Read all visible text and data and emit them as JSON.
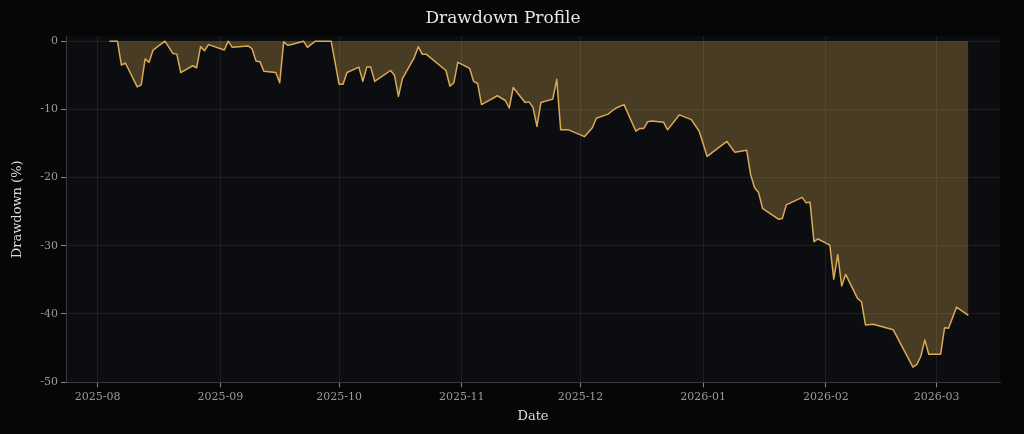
{
  "chart_data": {
    "type": "area",
    "title": "Drawdown Profile",
    "xlabel": "Date",
    "ylabel": "Drawdown (%)",
    "xlim": [
      "2025-07-24",
      "2026-03-17"
    ],
    "xticks": [
      "2025-08",
      "2025-09",
      "2025-10",
      "2025-11",
      "2025-12",
      "2026-01",
      "2026-02",
      "2026-03"
    ],
    "ylim": [
      -50,
      0.7
    ],
    "yticks": [
      -50,
      -40,
      -30,
      -20,
      -10,
      0
    ],
    "grid": true,
    "legend": false,
    "marker": "none",
    "x": [
      "2025-08-04",
      "2025-08-06",
      "2025-08-07",
      "2025-08-08",
      "2025-08-11",
      "2025-08-12",
      "2025-08-13",
      "2025-08-14",
      "2025-08-15",
      "2025-08-18",
      "2025-08-20",
      "2025-08-21",
      "2025-08-22",
      "2025-08-25",
      "2025-08-26",
      "2025-08-27",
      "2025-08-28",
      "2025-08-29",
      "2025-09-02",
      "2025-09-03",
      "2025-09-04",
      "2025-09-08",
      "2025-09-09",
      "2025-09-10",
      "2025-09-11",
      "2025-09-12",
      "2025-09-15",
      "2025-09-16",
      "2025-09-17",
      "2025-09-18",
      "2025-09-19",
      "2025-09-22",
      "2025-09-23",
      "2025-09-25",
      "2025-09-29",
      "2025-10-01",
      "2025-10-02",
      "2025-10-03",
      "2025-10-06",
      "2025-10-07",
      "2025-10-08",
      "2025-10-09",
      "2025-10-10",
      "2025-10-14",
      "2025-10-15",
      "2025-10-16",
      "2025-10-17",
      "2025-10-20",
      "2025-10-21",
      "2025-10-22",
      "2025-10-23",
      "2025-10-28",
      "2025-10-29",
      "2025-10-30",
      "2025-10-31",
      "2025-11-03",
      "2025-11-04",
      "2025-11-05",
      "2025-11-06",
      "2025-11-10",
      "2025-11-12",
      "2025-11-13",
      "2025-11-14",
      "2025-11-17",
      "2025-11-18",
      "2025-11-19",
      "2025-11-20",
      "2025-11-21",
      "2025-11-24",
      "2025-11-25",
      "2025-11-26",
      "2025-11-28",
      "2025-12-02",
      "2025-12-04",
      "2025-12-05",
      "2025-12-08",
      "2025-12-09",
      "2025-12-10",
      "2025-12-12",
      "2025-12-15",
      "2025-12-16",
      "2025-12-17",
      "2025-12-18",
      "2025-12-19",
      "2025-12-22",
      "2025-12-23",
      "2025-12-26",
      "2025-12-29",
      "2025-12-31",
      "2026-01-02",
      "2026-01-07",
      "2026-01-09",
      "2026-01-12",
      "2026-01-13",
      "2026-01-14",
      "2026-01-15",
      "2026-01-16",
      "2026-01-20",
      "2026-01-21",
      "2026-01-22",
      "2026-01-26",
      "2026-01-27",
      "2026-01-28",
      "2026-01-29",
      "2026-01-30",
      "2026-02-02",
      "2026-02-03",
      "2026-02-04",
      "2026-02-05",
      "2026-02-06",
      "2026-02-09",
      "2026-02-10",
      "2026-02-11",
      "2026-02-13",
      "2026-02-18",
      "2026-02-23",
      "2026-02-24",
      "2026-02-25",
      "2026-02-26",
      "2026-02-27",
      "2026-03-02",
      "2026-03-03",
      "2026-03-04",
      "2026-03-06",
      "2026-03-09"
    ],
    "series": [
      {
        "color": "#d9aa55",
        "values": [
          0,
          0,
          -3.5,
          -3.2,
          -6.7,
          -6.4,
          -2.6,
          -3.1,
          -1.3,
          0,
          -1.8,
          -1.9,
          -4.6,
          -3.6,
          -3.9,
          -0.8,
          -1.4,
          -0.5,
          -1.3,
          0,
          -0.9,
          -0.7,
          -1.1,
          -2.9,
          -3.0,
          -4.4,
          -4.6,
          -6.1,
          -0.1,
          -0.6,
          -0.5,
          0,
          -0.9,
          0,
          0,
          -6.3,
          -6.3,
          -4.6,
          -3.8,
          -5.9,
          -3.8,
          -3.8,
          -5.9,
          -4.3,
          -5.0,
          -8.1,
          -5.5,
          -2.4,
          -0.8,
          -1.9,
          -1.9,
          -4.3,
          -6.6,
          -6.1,
          -3.1,
          -4.0,
          -5.9,
          -6.2,
          -9.3,
          -8.0,
          -8.7,
          -9.8,
          -6.8,
          -9.0,
          -8.9,
          -9.7,
          -12.5,
          -9.0,
          -8.5,
          -5.6,
          -13.0,
          -13.0,
          -14.0,
          -12.7,
          -11.3,
          -10.7,
          -10.2,
          -9.8,
          -9.3,
          -13.2,
          -12.8,
          -12.8,
          -11.8,
          -11.7,
          -11.9,
          -13.0,
          -10.8,
          -11.5,
          -13.2,
          -16.9,
          -14.7,
          -16.3,
          -16.0,
          -19.6,
          -21.5,
          -22.2,
          -24.5,
          -26.1,
          -26.0,
          -24.0,
          -22.9,
          -23.7,
          -23.6,
          -29.4,
          -29.0,
          -29.9,
          -34.9,
          -31.3,
          -35.9,
          -34.2,
          -37.7,
          -38.2,
          -41.6,
          -41.5,
          -42.3,
          -47.8,
          -47.4,
          -46.2,
          -43.8,
          -45.9,
          -45.9,
          -42.0,
          -42.1,
          -39.0,
          -40.2
        ]
      }
    ]
  }
}
